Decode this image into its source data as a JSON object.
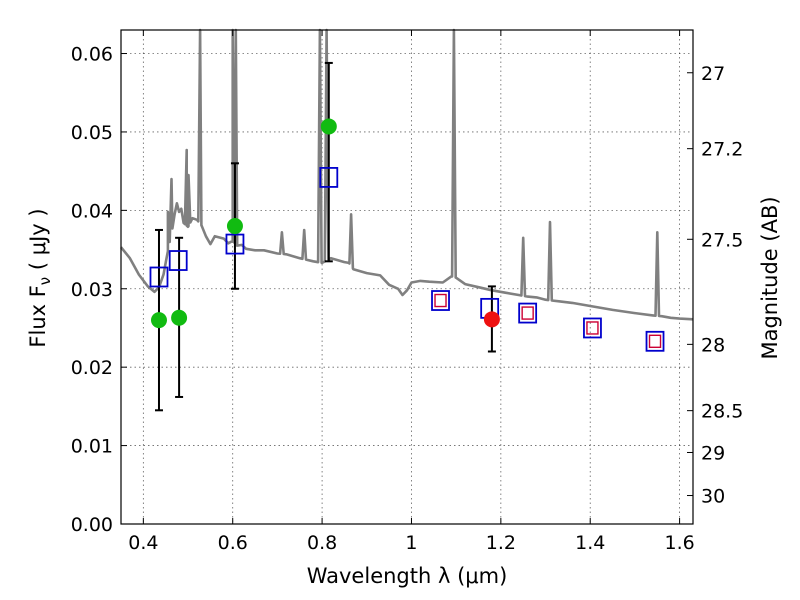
{
  "chart_data": {
    "type": "scatter",
    "xlabel": "Wavelength  λ (μm)",
    "ylabel_left": "Flux  F",
    "ylabel_left_sub": "ν",
    "ylabel_left_units": " ( μJy )",
    "ylabel_right": "Magnitude (AB)",
    "xlim": [
      0.35,
      1.63
    ],
    "ylim": [
      0.0,
      0.063
    ],
    "grid": true,
    "x_ticks": [
      {
        "value": 0.4,
        "label": "0.4"
      },
      {
        "value": 0.6,
        "label": "0.6"
      },
      {
        "value": 0.8,
        "label": "0.8"
      },
      {
        "value": 1.0,
        "label": "1"
      },
      {
        "value": 1.2,
        "label": "1.2"
      },
      {
        "value": 1.4,
        "label": "1.4"
      },
      {
        "value": 1.6,
        "label": "1.6"
      }
    ],
    "y_ticks": [
      {
        "value": 0.0,
        "label": "0.00"
      },
      {
        "value": 0.01,
        "label": "0.01"
      },
      {
        "value": 0.02,
        "label": "0.02"
      },
      {
        "value": 0.03,
        "label": "0.03"
      },
      {
        "value": 0.04,
        "label": "0.04"
      },
      {
        "value": 0.05,
        "label": "0.05"
      },
      {
        "value": 0.06,
        "label": "0.06"
      }
    ],
    "mag_ticks": [
      {
        "value": 27,
        "label": "27"
      },
      {
        "value": 27.2,
        "label": "27.2"
      },
      {
        "value": 27.5,
        "label": "27.5"
      },
      {
        "value": 28,
        "label": "28"
      },
      {
        "value": 28.5,
        "label": "28.5"
      },
      {
        "value": 29,
        "label": "29"
      },
      {
        "value": 30,
        "label": "30"
      }
    ],
    "colors": {
      "template": "#808080",
      "model_square": "#0000cc",
      "inner_square": "#cc0033",
      "green_point": "#11bb11",
      "red_point": "#ee1111",
      "errorbar": "#000000"
    },
    "series": [
      {
        "name": "template-spectrum",
        "kind": "line",
        "x": [
          0.35,
          0.37,
          0.39,
          0.41,
          0.425,
          0.435,
          0.445,
          0.455,
          0.465,
          0.47,
          0.475,
          0.48,
          0.485,
          0.49,
          0.5,
          0.51,
          0.52,
          0.53,
          0.54,
          0.55,
          0.56,
          0.58,
          0.59,
          0.6,
          0.61,
          0.62,
          0.63,
          0.65,
          0.67,
          0.7,
          0.72,
          0.75,
          0.78,
          0.8,
          0.82,
          0.85,
          0.86,
          0.87,
          0.9,
          0.93,
          0.95,
          0.97,
          0.98,
          0.99,
          1.0,
          1.02,
          1.04,
          1.07,
          1.09,
          1.1,
          1.12,
          1.15,
          1.18,
          1.21,
          1.24,
          1.26,
          1.28,
          1.3,
          1.33,
          1.36,
          1.4,
          1.45,
          1.5,
          1.54,
          1.56,
          1.58,
          1.6,
          1.63
        ],
        "y": [
          0.0353,
          0.0339,
          0.0318,
          0.0303,
          0.0296,
          0.0302,
          0.0318,
          0.0348,
          0.0377,
          0.0395,
          0.0409,
          0.0398,
          0.0402,
          0.0384,
          0.0379,
          0.039,
          0.0388,
          0.0381,
          0.0367,
          0.0357,
          0.0367,
          0.0364,
          0.0358,
          0.0361,
          0.0355,
          0.0356,
          0.0351,
          0.0349,
          0.0349,
          0.0345,
          0.0344,
          0.0339,
          0.0335,
          0.0333,
          0.0339,
          0.0334,
          0.0333,
          0.0325,
          0.032,
          0.0317,
          0.0305,
          0.03,
          0.0292,
          0.0298,
          0.0308,
          0.031,
          0.0309,
          0.0308,
          0.0316,
          0.0314,
          0.0306,
          0.0302,
          0.0298,
          0.0295,
          0.0292,
          0.029,
          0.0289,
          0.0286,
          0.0284,
          0.0282,
          0.0278,
          0.0273,
          0.0269,
          0.0266,
          0.0265,
          0.0263,
          0.0262,
          0.0261
        ]
      },
      {
        "name": "template-emission-lines",
        "kind": "spikes",
        "lines": [
          {
            "x": 0.455,
            "peak": 0.0398
          },
          {
            "x": 0.463,
            "peak": 0.044
          },
          {
            "x": 0.497,
            "peak": 0.0477
          },
          {
            "x": 0.501,
            "peak": 0.0445
          },
          {
            "x": 0.527,
            "peak": 0.07
          },
          {
            "x": 0.6,
            "peak": 0.07
          },
          {
            "x": 0.607,
            "peak": 0.07
          },
          {
            "x": 0.71,
            "peak": 0.0372
          },
          {
            "x": 0.76,
            "peak": 0.0375
          },
          {
            "x": 0.795,
            "peak": 0.07
          },
          {
            "x": 0.81,
            "peak": 0.07
          },
          {
            "x": 0.865,
            "peak": 0.0395
          },
          {
            "x": 1.095,
            "peak": 0.07
          },
          {
            "x": 1.25,
            "peak": 0.0365
          },
          {
            "x": 1.31,
            "peak": 0.0385
          },
          {
            "x": 1.55,
            "peak": 0.0372
          }
        ]
      },
      {
        "name": "model-photometry",
        "kind": "open-squares",
        "x": [
          0.435,
          0.478,
          0.605,
          0.815,
          1.065,
          1.175,
          1.26,
          1.405,
          1.545
        ],
        "y": [
          0.0315,
          0.0336,
          0.0357,
          0.0442,
          0.0285,
          0.0275,
          0.0269,
          0.025,
          0.0233
        ],
        "inner": [
          false,
          false,
          false,
          false,
          true,
          false,
          true,
          true,
          true
        ]
      },
      {
        "name": "observed-photometry",
        "kind": "points-with-errorbars",
        "x": [
          0.435,
          0.48,
          0.605,
          0.815,
          1.18
        ],
        "y": [
          0.026,
          0.0263,
          0.038,
          0.0507,
          0.0261
        ],
        "err_low": [
          0.0145,
          0.0162,
          0.03,
          0.0335,
          0.022
        ],
        "err_high": [
          0.0375,
          0.0365,
          0.046,
          0.0588,
          0.0303
        ],
        "color": [
          "green",
          "green",
          "green",
          "green",
          "red"
        ]
      }
    ]
  }
}
